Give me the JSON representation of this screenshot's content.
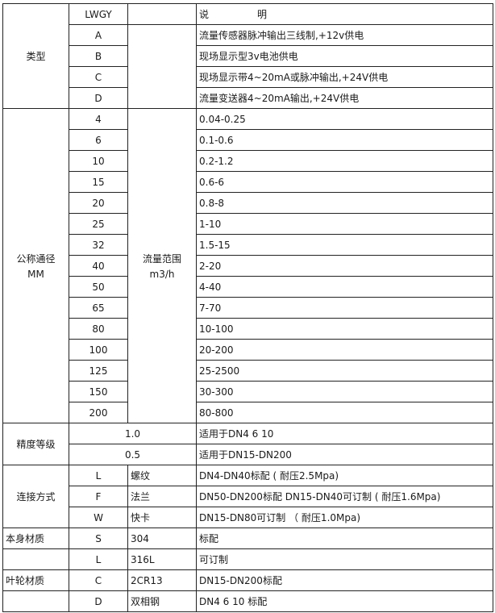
{
  "header": {
    "model": "LWGY",
    "desc_a": "说",
    "desc_b": "明"
  },
  "type": {
    "label": "类型",
    "rows": [
      {
        "code": "A",
        "desc": "流量传感器脉冲输出三线制,+12v供电"
      },
      {
        "code": "B",
        "desc": "现场显示型3v电池供电"
      },
      {
        "code": "C",
        "desc": "现场显示带4~20mA或脉冲输出,+24V供电"
      },
      {
        "code": "D",
        "desc": "流量变送器4~20mA输出,+24V供电"
      }
    ]
  },
  "diameter": {
    "label": "公称通径",
    "unit": "MM",
    "range_label": "流量范围",
    "range_unit": "m3/h",
    "rows": [
      {
        "size": "4",
        "range": "0.04-0.25"
      },
      {
        "size": "6",
        "range": "0.1-0.6"
      },
      {
        "size": "10",
        "range": "0.2-1.2"
      },
      {
        "size": "15",
        "range": "0.6-6"
      },
      {
        "size": "20",
        "range": "0.8-8"
      },
      {
        "size": "25",
        "range": "1-10"
      },
      {
        "size": "32",
        "range": "1.5-15"
      },
      {
        "size": "40",
        "range": "2-20"
      },
      {
        "size": "50",
        "range": "4-40"
      },
      {
        "size": "65",
        "range": "7-70"
      },
      {
        "size": "80",
        "range": "10-100"
      },
      {
        "size": "100",
        "range": "20-200"
      },
      {
        "size": "125",
        "range": "25-2500"
      },
      {
        "size": "150",
        "range": "30-300"
      },
      {
        "size": "200",
        "range": "80-800"
      }
    ]
  },
  "accuracy": {
    "label": "精度等级",
    "rows": [
      {
        "grade": "1.0",
        "desc": "适用于DN4  6  10"
      },
      {
        "grade": "0.5",
        "desc": "适用于DN15-DN200"
      }
    ]
  },
  "connection": {
    "label": "连接方式",
    "rows": [
      {
        "code": "L",
        "name": "螺纹",
        "desc": "DN4-DN40标配 ( 耐压2.5Mpa)"
      },
      {
        "code": "F",
        "name": "法兰",
        "desc": "DN50-DN200标配 DN15-DN40可订制 ( 耐压1.6Mpa)"
      },
      {
        "code": "W",
        "name": "快卡",
        "desc": "DN15-DN80可订制 （ 耐压1.0Mpa)"
      }
    ]
  },
  "body": {
    "label": "本身材质",
    "rows": [
      {
        "code": "S",
        "name": "304",
        "desc": "标配"
      },
      {
        "code": "L",
        "name": "316L",
        "desc": "可订制"
      }
    ]
  },
  "impeller": {
    "label": "叶轮材质",
    "rows": [
      {
        "code": "C",
        "name": "2CR13",
        "desc": "DN15-DN200标配"
      },
      {
        "code": "D",
        "name": "双相钢",
        "desc": "DN4 6 10 标配"
      }
    ]
  }
}
